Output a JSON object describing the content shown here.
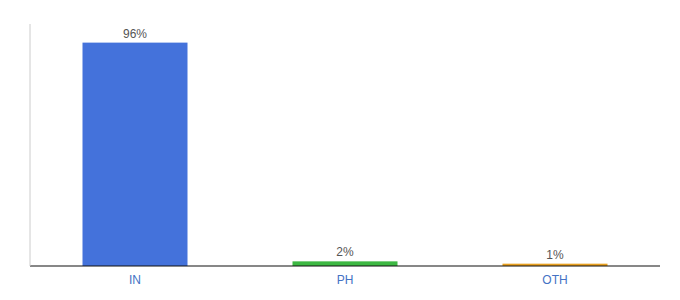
{
  "chart_data": {
    "type": "bar",
    "categories": [
      "IN",
      "PH",
      "OTH"
    ],
    "values": [
      96,
      2,
      1
    ],
    "value_labels": [
      "96%",
      "2%",
      "1%"
    ],
    "colors": [
      "#4472db",
      "#3db843",
      "#e8a020"
    ],
    "ylim": [
      0,
      104
    ],
    "data_labels": true,
    "tick_labels": "x",
    "grid": false
  }
}
